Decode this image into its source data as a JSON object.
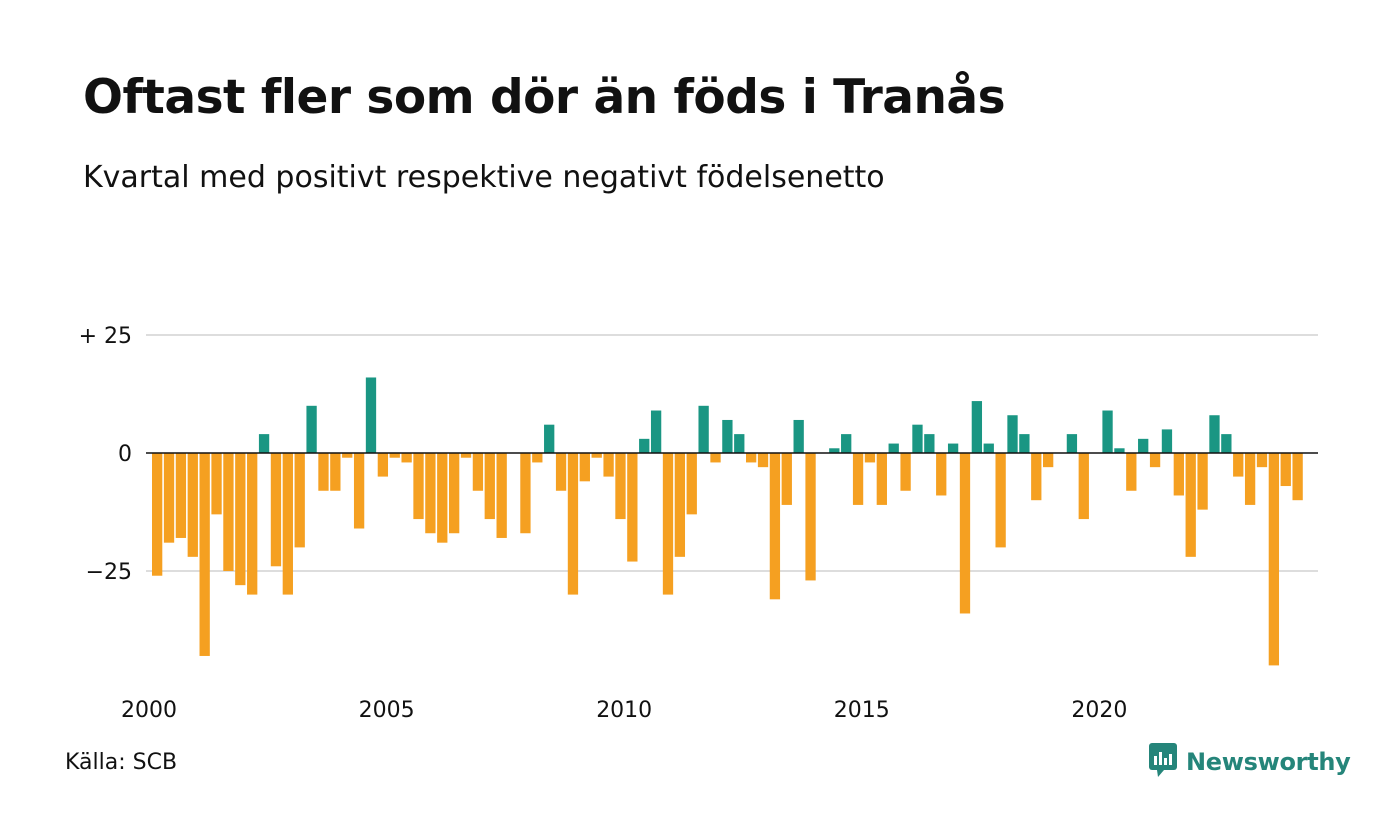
{
  "header": {
    "title": "Oftast fler som dör än föds i Tranås",
    "subtitle": "Kvartal med positivt respektive negativt födelsenetto"
  },
  "footer": {
    "source": "Källa: SCB",
    "brand": "Newsworthy",
    "brand_icon": "newsworthy-logo-icon"
  },
  "colors": {
    "positive": "#1a9683",
    "negative": "#f5a021",
    "grid": "#dddddd",
    "zero_line": "#111111",
    "brand": "#25857a"
  },
  "chart_data": {
    "type": "bar",
    "title": "Oftast fler som dör än föds i Tranås",
    "subtitle": "Kvartal med positivt respektive negativt födelsenetto",
    "x_start": 2000,
    "x_step": 0.25,
    "x_unit": "kvartal",
    "xticks": [
      2000,
      2005,
      2010,
      2015,
      2020
    ],
    "yticks": [
      {
        "value": 25,
        "label": "+ 25"
      },
      {
        "value": 0,
        "label": "0"
      },
      {
        "value": -25,
        "label": "−25"
      }
    ],
    "ylim": [
      -47,
      28
    ],
    "grid": true,
    "values": [
      -26,
      -19,
      -18,
      -22,
      -43,
      -13,
      -25,
      -28,
      -30,
      4,
      -24,
      -30,
      -20,
      10,
      -8,
      -8,
      -1,
      -16,
      16,
      -5,
      -1,
      -2,
      -14,
      -17,
      -19,
      -17,
      -1,
      -8,
      -14,
      -18,
      0,
      -17,
      -2,
      6,
      -8,
      -30,
      -6,
      -1,
      -5,
      -14,
      -23,
      3,
      9,
      -30,
      -22,
      -13,
      10,
      -2,
      7,
      4,
      -2,
      -3,
      -31,
      -11,
      7,
      -27,
      0,
      1,
      4,
      -11,
      -2,
      -11,
      2,
      -8,
      6,
      4,
      -9,
      2,
      -34,
      11,
      2,
      -20,
      8,
      4,
      -10,
      -3,
      0,
      4,
      -14,
      0,
      9,
      1,
      -8,
      3,
      -3,
      5,
      -9,
      -22,
      -12,
      8,
      4,
      -5,
      -11,
      -3,
      -45,
      -7,
      -10
    ]
  }
}
